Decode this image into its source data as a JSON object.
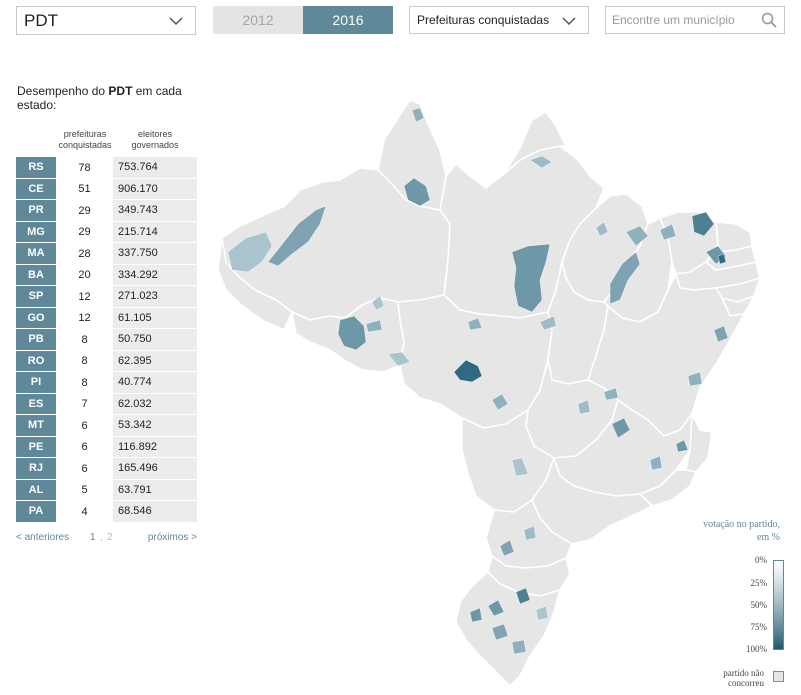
{
  "controls": {
    "party_value": "PDT",
    "years": [
      "2012",
      "2016"
    ],
    "selected_year": "2016",
    "metric_value": "Prefeituras conquistadas",
    "search_placeholder": "Encontre um município"
  },
  "panel": {
    "title_prefix": "Desempenho do ",
    "title_party": "PDT",
    "title_suffix": " em cada estado:",
    "col_cities": "prefeituras conquistadas",
    "col_voters": "eleitores governados",
    "rows": [
      {
        "uf": "RS",
        "cities": "78",
        "voters": "753.764"
      },
      {
        "uf": "CE",
        "cities": "51",
        "voters": "906.170"
      },
      {
        "uf": "PR",
        "cities": "29",
        "voters": "349.743"
      },
      {
        "uf": "MG",
        "cities": "29",
        "voters": "215.714"
      },
      {
        "uf": "MA",
        "cities": "28",
        "voters": "337.750"
      },
      {
        "uf": "BA",
        "cities": "20",
        "voters": "334.292"
      },
      {
        "uf": "SP",
        "cities": "12",
        "voters": "271.023"
      },
      {
        "uf": "GO",
        "cities": "12",
        "voters": "61.105"
      },
      {
        "uf": "PB",
        "cities": "8",
        "voters": "50.750"
      },
      {
        "uf": "RO",
        "cities": "8",
        "voters": "62.395"
      },
      {
        "uf": "PI",
        "cities": "8",
        "voters": "40.774"
      },
      {
        "uf": "ES",
        "cities": "7",
        "voters": "62.032"
      },
      {
        "uf": "MT",
        "cities": "6",
        "voters": "53.342"
      },
      {
        "uf": "PE",
        "cities": "6",
        "voters": "116.892"
      },
      {
        "uf": "RJ",
        "cities": "6",
        "voters": "165.496"
      },
      {
        "uf": "AL",
        "cities": "5",
        "voters": "63.791"
      },
      {
        "uf": "PA",
        "cities": "4",
        "voters": "68.546"
      }
    ],
    "pager": {
      "prev": "< anteriores",
      "page1": "1",
      "sep": ",",
      "page2": "2",
      "next": "próximos >"
    }
  },
  "legend": {
    "title": "votação no partido, em %",
    "ticks": [
      "0%",
      "25%",
      "50%",
      "75%",
      "100%"
    ],
    "not_contested": "partido não concorreu"
  },
  "colors": {
    "accent": "#5f8898",
    "map_fill": "#e6e6e6",
    "map_border": "#ffffff",
    "inactive_tab": "#e4e4e4"
  }
}
